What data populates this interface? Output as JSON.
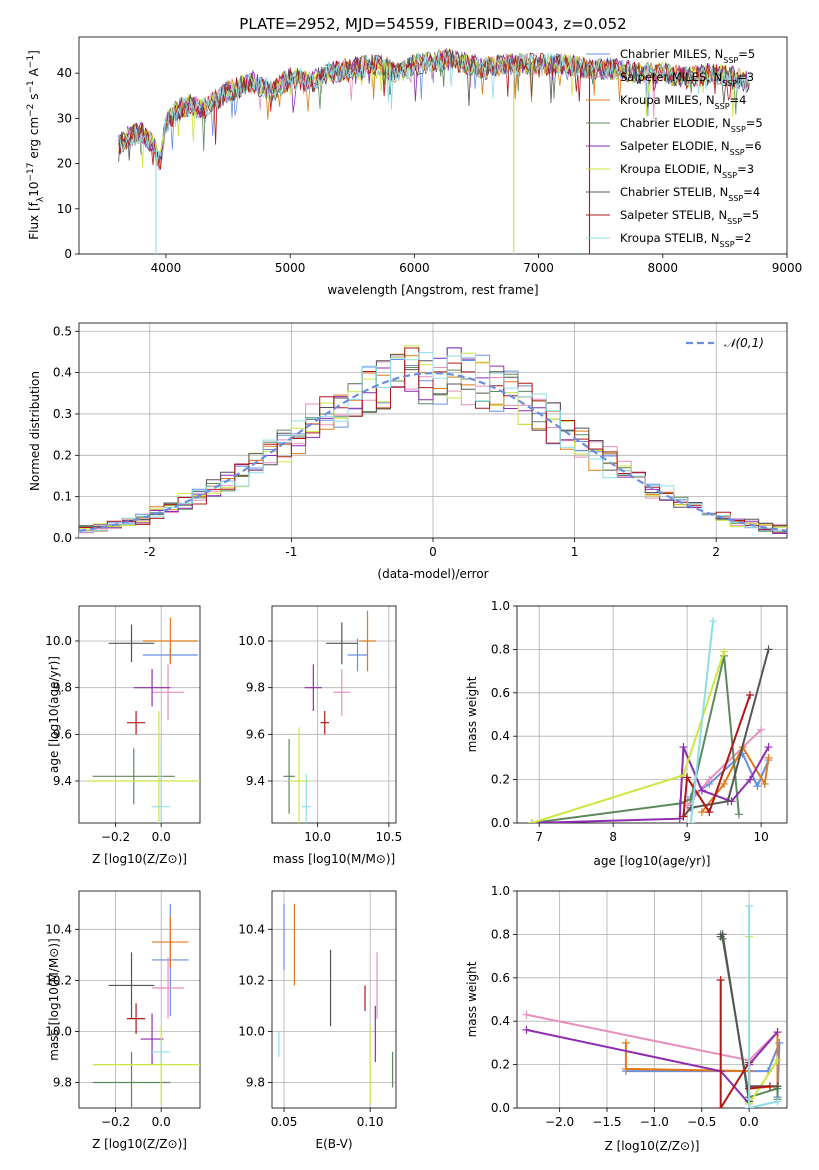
{
  "colors": {
    "Chabrier MILES": "#6a8fe0",
    "Salpeter MILES": "#e88fbf",
    "Kroupa MILES": "#e07b1a",
    "Chabrier ELODIE": "#5d8a5d",
    "Salpeter ELODIE": "#8e2db0",
    "Kroupa ELODIE": "#cde640",
    "Chabrier STELIB": "#555555",
    "Salpeter STELIB": "#b01818",
    "Kroupa STELIB": "#8fdde6",
    "normal": "#6a8fe0"
  },
  "chart_data": [
    {
      "id": "spectrum",
      "type": "line",
      "title": "PLATE=2952, MJD=54559, FIBERID=0043, z=0.052",
      "xlabel": "wavelength [Angstrom, rest frame]",
      "ylabel": "Flux [f_λ10^-17 erg cm^-2 s^-1 A^-1]",
      "xlim": [
        3300,
        9000
      ],
      "ylim": [
        0,
        48
      ],
      "xticks": [
        4000,
        5000,
        6000,
        7000,
        8000,
        9000
      ],
      "yticks": [
        0,
        10,
        20,
        30,
        40
      ],
      "legend_position": "top-right",
      "legend": [
        {
          "model": "Chabrier MILES",
          "label": "Chabrier MILES, N",
          "sub": "SSP",
          "n": "=5"
        },
        {
          "model": "Salpeter MILES",
          "label": "Salpeter MILES, N",
          "sub": "SSP",
          "n": "=3"
        },
        {
          "model": "Kroupa MILES",
          "label": "Kroupa MILES, N",
          "sub": "SSP",
          "n": "=4"
        },
        {
          "model": "Chabrier ELODIE",
          "label": "Chabrier ELODIE, N",
          "sub": "SSP",
          "n": "=5"
        },
        {
          "model": "Salpeter ELODIE",
          "label": "Salpeter ELODIE, N",
          "sub": "SSP",
          "n": "=6"
        },
        {
          "model": "Kroupa ELODIE",
          "label": "Kroupa ELODIE, N",
          "sub": "SSP",
          "n": "=3"
        },
        {
          "model": "Chabrier STELIB",
          "label": "Chabrier STELIB, N",
          "sub": "SSP",
          "n": "=4"
        },
        {
          "model": "Salpeter STELIB",
          "label": "Salpeter STELIB, N",
          "sub": "SSP",
          "n": "=5"
        },
        {
          "model": "Kroupa STELIB",
          "label": "Kroupa STELIB, N",
          "sub": "SSP",
          "n": "=2"
        }
      ],
      "continuum": [
        [
          3620,
          24
        ],
        [
          3700,
          26
        ],
        [
          3800,
          27
        ],
        [
          3900,
          24
        ],
        [
          3950,
          20
        ],
        [
          4000,
          29
        ],
        [
          4100,
          32
        ],
        [
          4200,
          33
        ],
        [
          4300,
          32
        ],
        [
          4400,
          34
        ],
        [
          4500,
          36
        ],
        [
          4700,
          38
        ],
        [
          4861,
          36
        ],
        [
          5000,
          39
        ],
        [
          5175,
          38
        ],
        [
          5300,
          40
        ],
        [
          5500,
          41
        ],
        [
          5700,
          42
        ],
        [
          5890,
          40
        ],
        [
          6000,
          42
        ],
        [
          6300,
          43
        ],
        [
          6563,
          41
        ],
        [
          6700,
          42
        ],
        [
          7000,
          42
        ],
        [
          7200,
          42
        ],
        [
          7400,
          41
        ],
        [
          7600,
          41
        ],
        [
          7800,
          40
        ],
        [
          8000,
          40
        ],
        [
          8200,
          39
        ],
        [
          8400,
          40
        ],
        [
          8600,
          39
        ],
        [
          8700,
          38
        ]
      ],
      "dropouts": [
        {
          "model": "Kroupa STELIB",
          "x": 3920,
          "to": 0
        },
        {
          "model": "Kroupa ELODIE",
          "x": 6800,
          "to": 0
        },
        {
          "model": "Salpeter STELIB",
          "x": 7410,
          "to": 0
        }
      ]
    },
    {
      "id": "residual-hist",
      "type": "histogram",
      "xlabel": "(data-model)/error",
      "ylabel": "Normed distribution",
      "xlim": [
        -2.5,
        2.5
      ],
      "ylim": [
        0,
        0.52
      ],
      "xticks": [
        -2,
        -1,
        0,
        1,
        2
      ],
      "yticks": [
        0.0,
        0.1,
        0.2,
        0.3,
        0.4,
        0.5
      ],
      "bin_width": 0.1,
      "legend_position": "top-right",
      "legend": [
        {
          "label": "𝒩(0,1)",
          "style": "dashed"
        }
      ],
      "series": [
        {
          "name": "Chabrier MILES",
          "seed": 3
        },
        {
          "name": "Salpeter MILES",
          "seed": 7
        },
        {
          "name": "Kroupa MILES",
          "seed": 11
        },
        {
          "name": "Chabrier ELODIE",
          "seed": 13
        },
        {
          "name": "Salpeter ELODIE",
          "seed": 17
        },
        {
          "name": "Kroupa ELODIE",
          "seed": 19
        },
        {
          "name": "Chabrier STELIB",
          "seed": 23
        },
        {
          "name": "Salpeter STELIB",
          "seed": 29
        },
        {
          "name": "Kroupa STELIB",
          "seed": 31
        }
      ]
    },
    {
      "id": "z-age",
      "type": "errorbar",
      "xlabel": "Z [log10(Z/Z⊙)]",
      "ylabel": "age [log10(age/yr)]",
      "xlim": [
        -0.36,
        0.17
      ],
      "ylim": [
        9.22,
        10.15
      ],
      "xticks": [
        -0.2,
        0.0
      ],
      "xticklabels": [
        "−0.2",
        "0.0"
      ],
      "yticks": [
        9.4,
        9.6,
        9.8,
        10.0
      ],
      "yticklabels": [
        "9.4",
        "9.6",
        "9.8",
        "10.0"
      ],
      "points": [
        {
          "model": "Chabrier MILES",
          "x": 0.04,
          "y": 9.94,
          "xerr": 0.12,
          "yerr": 0.03
        },
        {
          "model": "Salpeter MILES",
          "x": 0.03,
          "y": 9.78,
          "xerr": 0.07,
          "yerr": 0.12
        },
        {
          "model": "Kroupa MILES",
          "x": 0.04,
          "y": 10.0,
          "xerr": 0.12,
          "yerr": 0.1
        },
        {
          "model": "Chabrier ELODIE",
          "x": -0.12,
          "y": 9.42,
          "xerr": 0.18,
          "yerr": 0.12
        },
        {
          "model": "Salpeter ELODIE",
          "x": -0.04,
          "y": 9.8,
          "xerr": 0.08,
          "yerr": 0.08
        },
        {
          "model": "Kroupa ELODIE",
          "x": -0.01,
          "y": 9.4,
          "xerr": 0.31,
          "yerr": 0.3
        },
        {
          "model": "Chabrier STELIB",
          "x": -0.13,
          "y": 9.99,
          "xerr": 0.1,
          "yerr": 0.08
        },
        {
          "model": "Salpeter STELIB",
          "x": -0.11,
          "y": 9.65,
          "xerr": 0.04,
          "yerr": 0.05
        },
        {
          "model": "Kroupa STELIB",
          "x": 0.0,
          "y": 9.29,
          "xerr": 0.04,
          "yerr": 0.28
        }
      ]
    },
    {
      "id": "mass-age",
      "type": "errorbar",
      "xlabel": "mass [log10(M/M⊙)]",
      "xlim": [
        9.68,
        10.55
      ],
      "ylim": [
        9.22,
        10.15
      ],
      "xticks": [
        10.0,
        10.5
      ],
      "xticklabels": [
        "10.0",
        "10.5"
      ],
      "yticks": [
        9.4,
        9.6,
        9.8,
        10.0
      ],
      "yticklabels": [
        "9.4",
        "9.6",
        "9.8",
        "10.0"
      ],
      "points": [
        {
          "model": "Chabrier MILES",
          "x": 10.28,
          "y": 9.94,
          "xerr": 0.07,
          "yerr": 0.07
        },
        {
          "model": "Salpeter MILES",
          "x": 10.17,
          "y": 9.78,
          "xerr": 0.06,
          "yerr": 0.1
        },
        {
          "model": "Kroupa MILES",
          "x": 10.35,
          "y": 10.0,
          "xerr": 0.06,
          "yerr": 0.13
        },
        {
          "model": "Chabrier ELODIE",
          "x": 9.8,
          "y": 9.42,
          "xerr": 0.04,
          "yerr": 0.16
        },
        {
          "model": "Salpeter ELODIE",
          "x": 9.97,
          "y": 9.8,
          "xerr": 0.06,
          "yerr": 0.1
        },
        {
          "model": "Kroupa ELODIE",
          "x": 9.87,
          "y": 9.4,
          "xerr": 0.07,
          "yerr": 0.23
        },
        {
          "model": "Chabrier STELIB",
          "x": 10.17,
          "y": 9.99,
          "xerr": 0.11,
          "yerr": 0.09
        },
        {
          "model": "Salpeter STELIB",
          "x": 10.05,
          "y": 9.65,
          "xerr": 0.03,
          "yerr": 0.05
        },
        {
          "model": "Kroupa STELIB",
          "x": 9.92,
          "y": 9.29,
          "xerr": 0.03,
          "yerr": 0.14
        }
      ]
    },
    {
      "id": "age-weight",
      "type": "line",
      "xlabel": "age [log10(age/yr)]",
      "ylabel": "mass weight",
      "xlim": [
        6.7,
        10.35
      ],
      "ylim": [
        0,
        1
      ],
      "xticks": [
        7,
        8,
        9,
        10
      ],
      "xticklabels": [
        "7",
        "8",
        "9",
        "10"
      ],
      "yticks": [
        0.0,
        0.2,
        0.4,
        0.6,
        0.8,
        1.0
      ],
      "yticklabels": [
        "0.0",
        "0.2",
        "0.4",
        "0.6",
        "0.8",
        "1.0"
      ],
      "series": [
        {
          "model": "Chabrier MILES",
          "x": [
            9.05,
            9.3,
            9.75,
            9.95,
            10.1
          ],
          "y": [
            0.12,
            0.18,
            0.32,
            0.17,
            0.29
          ]
        },
        {
          "model": "Salpeter MILES",
          "x": [
            9.0,
            9.3,
            10.0
          ],
          "y": [
            0.08,
            0.2,
            0.43
          ]
        },
        {
          "model": "Kroupa MILES",
          "x": [
            9.2,
            9.5,
            9.75,
            10.05,
            10.1
          ],
          "y": [
            0.05,
            0.18,
            0.35,
            0.18,
            0.3
          ]
        },
        {
          "model": "Chabrier ELODIE",
          "x": [
            6.9,
            8.9,
            9.05,
            9.5,
            9.7
          ],
          "y": [
            0.0,
            0.09,
            0.11,
            0.77,
            0.04
          ]
        },
        {
          "model": "Salpeter ELODIE",
          "x": [
            6.9,
            8.9,
            8.95,
            9.2,
            9.6,
            9.85,
            10.1
          ],
          "y": [
            0.0,
            0.02,
            0.35,
            0.15,
            0.1,
            0.2,
            0.35
          ]
        },
        {
          "model": "Kroupa ELODIE",
          "x": [
            6.9,
            8.95,
            9.5
          ],
          "y": [
            0.0,
            0.22,
            0.79
          ]
        },
        {
          "model": "Chabrier STELIB",
          "x": [
            8.95,
            9.05,
            9.55,
            10.1
          ],
          "y": [
            0.03,
            0.07,
            0.1,
            0.8
          ]
        },
        {
          "model": "Salpeter STELIB",
          "x": [
            8.95,
            9.0,
            9.3,
            9.85
          ],
          "y": [
            0.03,
            0.21,
            0.05,
            0.59
          ]
        },
        {
          "model": "Kroupa STELIB",
          "x": [
            9.05,
            9.35
          ],
          "y": [
            0.0,
            0.93
          ]
        }
      ]
    },
    {
      "id": "z-mass",
      "type": "errorbar",
      "xlabel": "Z [log10(Z/Z⊙)]",
      "ylabel": "mass [log10(M/M⊙)]",
      "xlim": [
        -0.36,
        0.17
      ],
      "ylim": [
        9.7,
        10.55
      ],
      "xticks": [
        -0.2,
        0.0
      ],
      "xticklabels": [
        "−0.2",
        "0.0"
      ],
      "yticks": [
        9.8,
        10.0,
        10.2,
        10.4
      ],
      "yticklabels": [
        "9.8",
        "10.0",
        "10.2",
        "10.4"
      ],
      "points": [
        {
          "model": "Chabrier MILES",
          "x": 0.04,
          "y": 10.28,
          "xerr": 0.08,
          "yerr": 0.22
        },
        {
          "model": "Salpeter MILES",
          "x": 0.03,
          "y": 10.17,
          "xerr": 0.07,
          "yerr": 0.12
        },
        {
          "model": "Kroupa MILES",
          "x": 0.04,
          "y": 10.35,
          "xerr": 0.08,
          "yerr": 0.1
        },
        {
          "model": "Chabrier ELODIE",
          "x": -0.13,
          "y": 9.8,
          "xerr": 0.17,
          "yerr": 0.12
        },
        {
          "model": "Salpeter ELODIE",
          "x": -0.04,
          "y": 9.97,
          "xerr": 0.05,
          "yerr": 0.1
        },
        {
          "model": "Kroupa ELODIE",
          "x": 0.0,
          "y": 9.87,
          "xerr": 0.3,
          "yerr": 0.15
        },
        {
          "model": "Chabrier STELIB",
          "x": -0.13,
          "y": 10.18,
          "xerr": 0.1,
          "yerr": 0.13
        },
        {
          "model": "Salpeter STELIB",
          "x": -0.11,
          "y": 10.05,
          "xerr": 0.04,
          "yerr": 0.06
        },
        {
          "model": "Kroupa STELIB",
          "x": 0.0,
          "y": 9.92,
          "xerr": 0.04,
          "yerr": 0.04
        }
      ]
    },
    {
      "id": "ebv-mass",
      "type": "errorbar",
      "xlabel": "E(B-V)",
      "xlim": [
        0.043,
        0.115
      ],
      "ylim": [
        9.7,
        10.55
      ],
      "xticks": [
        0.05,
        0.1
      ],
      "xticklabels": [
        "0.05",
        "0.10"
      ],
      "yticks": [
        9.8,
        10.0,
        10.2,
        10.4
      ],
      "yticklabels": [
        "9.8",
        "10.0",
        "10.2",
        "10.4"
      ],
      "points": [
        {
          "model": "Chabrier MILES",
          "x": 0.05,
          "y": 10.37,
          "xerr": 0,
          "yerr": 0.13
        },
        {
          "model": "Salpeter MILES",
          "x": 0.104,
          "y": 10.18,
          "xerr": 0,
          "yerr": 0.13
        },
        {
          "model": "Kroupa MILES",
          "x": 0.056,
          "y": 10.34,
          "xerr": 0,
          "yerr": 0.16
        },
        {
          "model": "Chabrier ELODIE",
          "x": 0.113,
          "y": 9.85,
          "xerr": 0,
          "yerr": 0.07
        },
        {
          "model": "Salpeter ELODIE",
          "x": 0.103,
          "y": 9.99,
          "xerr": 0,
          "yerr": 0.11
        },
        {
          "model": "Kroupa ELODIE",
          "x": 0.1,
          "y": 9.87,
          "xerr": 0,
          "yerr": 0.15
        },
        {
          "model": "Chabrier STELIB",
          "x": 0.077,
          "y": 10.17,
          "xerr": 0,
          "yerr": 0.15
        },
        {
          "model": "Salpeter STELIB",
          "x": 0.097,
          "y": 10.13,
          "xerr": 0,
          "yerr": 0.05
        },
        {
          "model": "Kroupa STELIB",
          "x": 0.047,
          "y": 9.95,
          "xerr": 0,
          "yerr": 0.05
        }
      ]
    },
    {
      "id": "z-weight",
      "type": "line",
      "xlabel": "Z [log10(Z/Z⊙)]",
      "ylabel": "mass weight",
      "xlim": [
        -2.45,
        0.4
      ],
      "ylim": [
        0,
        1
      ],
      "xticks": [
        -2.0,
        -1.5,
        -1.0,
        -0.5,
        0.0
      ],
      "xticklabels": [
        "−2.0",
        "−1.5",
        "−1.0",
        "−0.5",
        "0.0"
      ],
      "yticks": [
        0.0,
        0.2,
        0.4,
        0.6,
        0.8,
        1.0
      ],
      "yticklabels": [
        "0.0",
        "0.2",
        "0.4",
        "0.6",
        "0.8",
        "1.0"
      ],
      "series": [
        {
          "model": "Chabrier MILES",
          "x": [
            -1.3,
            0.0,
            0.2,
            0.32,
            0.3
          ],
          "y": [
            0.17,
            0.17,
            0.17,
            0.3,
            0.05
          ]
        },
        {
          "model": "Salpeter MILES",
          "x": [
            -2.35,
            0.0,
            0.3
          ],
          "y": [
            0.43,
            0.22,
            0.35
          ]
        },
        {
          "model": "Kroupa MILES",
          "x": [
            -1.3,
            -1.3,
            0.0,
            0.0,
            0.3,
            0.3
          ],
          "y": [
            0.3,
            0.18,
            0.17,
            0.09,
            0.1,
            0.35
          ]
        },
        {
          "model": "Chabrier ELODIE",
          "x": [
            -0.3,
            -0.28,
            0.0,
            0.3,
            0.3
          ],
          "y": [
            0.8,
            0.78,
            0.05,
            0.09,
            0.04
          ]
        },
        {
          "model": "Salpeter ELODIE",
          "x": [
            -2.35,
            -0.3,
            0.0,
            0.0,
            0.3
          ],
          "y": [
            0.36,
            0.17,
            0.02,
            0.2,
            0.35
          ]
        },
        {
          "model": "Kroupa ELODIE",
          "x": [
            0.0,
            0.0,
            0.3
          ],
          "y": [
            0.79,
            0.02,
            0.22
          ]
        },
        {
          "model": "Chabrier STELIB",
          "x": [
            -0.3,
            -0.28,
            0.0,
            0.0,
            0.3
          ],
          "y": [
            0.79,
            0.8,
            0.03,
            0.1,
            0.1
          ]
        },
        {
          "model": "Salpeter STELIB",
          "x": [
            -0.3,
            -0.3,
            0.0,
            0.0,
            0.22
          ],
          "y": [
            0.59,
            0.0,
            0.21,
            0.09,
            0.1
          ]
        },
        {
          "model": "Kroupa STELIB",
          "x": [
            0.0,
            0.0,
            0.3
          ],
          "y": [
            0.93,
            0.0,
            0.03
          ]
        }
      ]
    }
  ]
}
